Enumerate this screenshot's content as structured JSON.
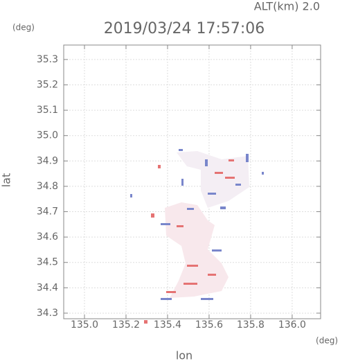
{
  "chart_data": {
    "type": "map",
    "title": "2019/03/24 17:57:06",
    "subtitle": "ALT(km) 2.0",
    "x_label": "lon",
    "y_label": "lat",
    "x_unit": "(deg)",
    "y_unit": "(deg)",
    "xlim": [
      134.9,
      136.137
    ],
    "ylim": [
      34.278,
      35.357
    ],
    "xticks": [
      {
        "value": 135,
        "label": "135.0"
      },
      135.2,
      135.4,
      135.6,
      135.8,
      {
        "value": 136,
        "label": "136.0"
      }
    ],
    "yticks": [
      34.3,
      34.4,
      34.5,
      34.6,
      34.7,
      34.8,
      34.9,
      {
        "value": 35,
        "label": "35.0"
      },
      35.1,
      35.2,
      35.3
    ],
    "grid": true
  }
}
